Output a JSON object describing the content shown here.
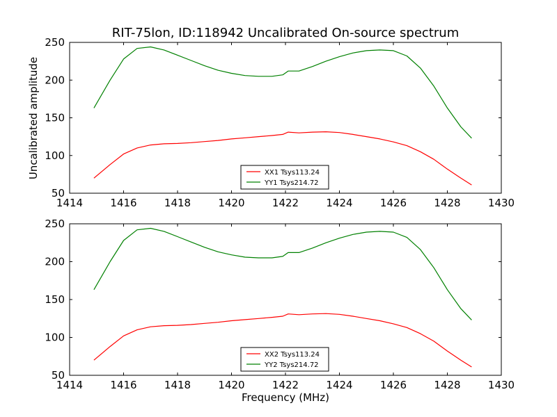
{
  "figure": {
    "title": "RIT-75lon, ID:118942 Uncalibrated On-source spectrum",
    "ylabel": "Uncalibrated amplitude",
    "xlabel": "Frequency (MHz)"
  },
  "chart_data": [
    {
      "type": "line",
      "xlim": [
        1414,
        1430
      ],
      "ylim": [
        50,
        250
      ],
      "xticks": [
        "1414",
        "1416",
        "1418",
        "1420",
        "1422",
        "1424",
        "1426",
        "1428",
        "1430"
      ],
      "yticks": [
        "50",
        "100",
        "150",
        "200",
        "250"
      ],
      "grid": false,
      "legend_placement": "lower-center",
      "x": [
        1414.9,
        1415.5,
        1416.0,
        1416.5,
        1417.0,
        1417.5,
        1418.0,
        1418.5,
        1419.0,
        1419.5,
        1420.0,
        1420.5,
        1421.0,
        1421.5,
        1421.9,
        1422.1,
        1422.5,
        1423.0,
        1423.5,
        1424.0,
        1424.5,
        1425.0,
        1425.5,
        1426.0,
        1426.5,
        1427.0,
        1427.5,
        1428.0,
        1428.5,
        1428.9
      ],
      "series": [
        {
          "name": "XX1 Tsys113.24",
          "color": "#ff0000",
          "values": [
            70,
            88,
            102,
            110,
            114,
            115.5,
            116,
            117,
            118.5,
            120,
            122,
            123.5,
            125,
            126.5,
            128,
            131,
            130,
            131,
            131.5,
            130.5,
            128,
            125,
            122,
            118,
            113,
            105,
            95,
            82,
            70,
            61
          ]
        },
        {
          "name": "YY1 Tsys214.72",
          "color": "#008000",
          "values": [
            163,
            200,
            228,
            242,
            244,
            240,
            233,
            226,
            219,
            213,
            209,
            206,
            205,
            205,
            207,
            212,
            212,
            218,
            225,
            231,
            236,
            239,
            240,
            239,
            232,
            216,
            192,
            163,
            138,
            123
          ]
        }
      ]
    },
    {
      "type": "line",
      "xlim": [
        1414,
        1430
      ],
      "ylim": [
        50,
        250
      ],
      "xticks": [
        "1414",
        "1416",
        "1418",
        "1420",
        "1422",
        "1424",
        "1426",
        "1428",
        "1430"
      ],
      "yticks": [
        "50",
        "100",
        "150",
        "200",
        "250"
      ],
      "grid": false,
      "legend_placement": "lower-center",
      "x": [
        1414.9,
        1415.5,
        1416.0,
        1416.5,
        1417.0,
        1417.5,
        1418.0,
        1418.5,
        1419.0,
        1419.5,
        1420.0,
        1420.5,
        1421.0,
        1421.5,
        1421.9,
        1422.1,
        1422.5,
        1423.0,
        1423.5,
        1424.0,
        1424.5,
        1425.0,
        1425.5,
        1426.0,
        1426.5,
        1427.0,
        1427.5,
        1428.0,
        1428.5,
        1428.9
      ],
      "series": [
        {
          "name": "XX2 Tsys113.24",
          "color": "#ff0000",
          "values": [
            70,
            88,
            102,
            110,
            114,
            115.5,
            116,
            117,
            118.5,
            120,
            122,
            123.5,
            125,
            126.5,
            128,
            131,
            130,
            131,
            131.5,
            130.5,
            128,
            125,
            122,
            118,
            113,
            105,
            95,
            82,
            70,
            61
          ]
        },
        {
          "name": "YY2 Tsys214.72",
          "color": "#008000",
          "values": [
            163,
            200,
            228,
            242,
            244,
            240,
            233,
            226,
            219,
            213,
            209,
            206,
            205,
            205,
            207,
            212,
            212,
            218,
            225,
            231,
            236,
            239,
            240,
            239,
            232,
            216,
            192,
            163,
            138,
            123
          ]
        }
      ]
    }
  ]
}
